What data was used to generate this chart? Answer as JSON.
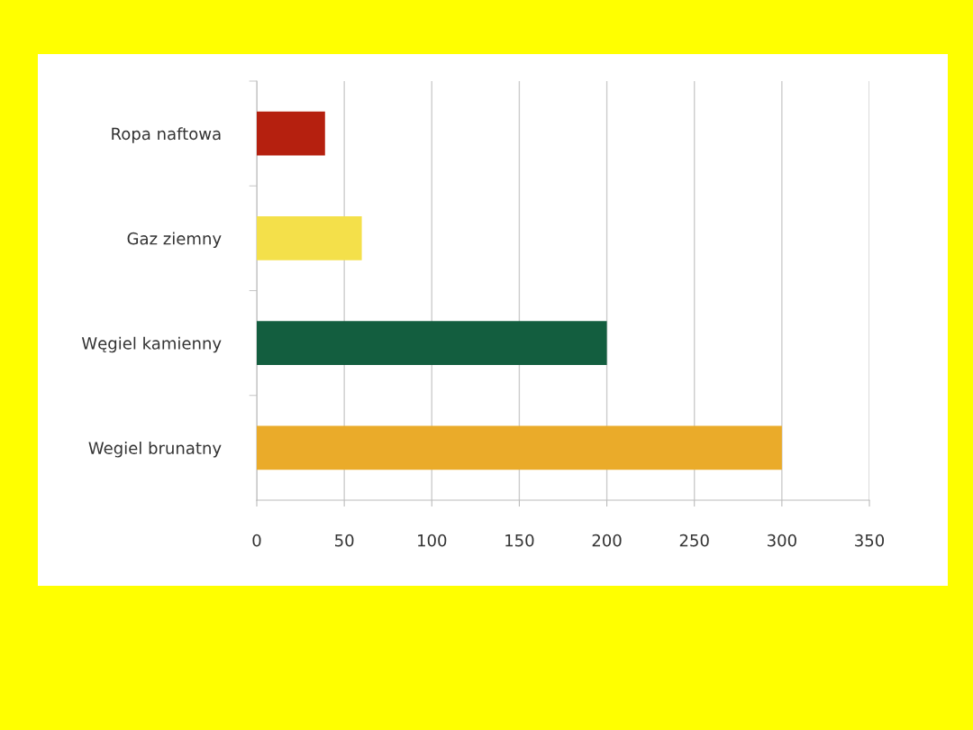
{
  "chart_data": {
    "type": "bar",
    "orientation": "horizontal",
    "categories": [
      "Ropa naftowa",
      "Gaz ziemny",
      "Węgiel kamienny",
      "Wegiel brunatny"
    ],
    "values": [
      39,
      60,
      200,
      300
    ],
    "colors": [
      "#b5200f",
      "#f4e04a",
      "#135e3f",
      "#eaab2a"
    ],
    "xlim": [
      0,
      350
    ],
    "xticks": [
      0,
      50,
      100,
      150,
      200,
      250,
      300,
      350
    ],
    "grid": "x"
  }
}
